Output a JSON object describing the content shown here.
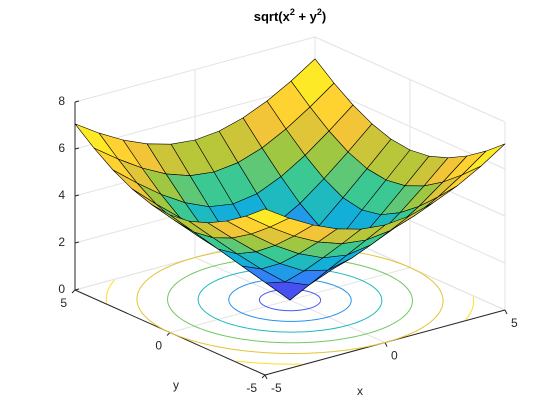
{
  "chart_data": {
    "type": "surface",
    "title": "sqrt(x^2 + y^2)",
    "x_label": "x",
    "y_label": "y",
    "x": [
      -5,
      -4,
      -3,
      -2,
      -1,
      0,
      1,
      2,
      3,
      4,
      5
    ],
    "y": [
      -5,
      -4,
      -3,
      -2,
      -1,
      0,
      1,
      2,
      3,
      4,
      5
    ],
    "z": [
      [
        7.07,
        6.4,
        5.83,
        5.39,
        5.1,
        5,
        5.1,
        5.39,
        5.83,
        6.4,
        7.07
      ],
      [
        6.4,
        5.66,
        5,
        4.47,
        4.12,
        4,
        4.12,
        4.47,
        5,
        5.66,
        6.4
      ],
      [
        5.83,
        5,
        4.24,
        3.61,
        3.16,
        3,
        3.16,
        3.61,
        4.24,
        5,
        5.83
      ],
      [
        5.39,
        4.47,
        3.61,
        2.83,
        2.24,
        2,
        2.24,
        2.83,
        3.61,
        4.47,
        5.39
      ],
      [
        5.1,
        4.12,
        3.16,
        2.24,
        1.41,
        1,
        1.41,
        2.24,
        3.16,
        4.12,
        5.1
      ],
      [
        5,
        4,
        3,
        2,
        1,
        0,
        1,
        2,
        3,
        4,
        5
      ],
      [
        5.1,
        4.12,
        3.16,
        2.24,
        1.41,
        1,
        1.41,
        2.24,
        3.16,
        4.12,
        5.1
      ],
      [
        5.39,
        4.47,
        3.61,
        2.83,
        2.24,
        2,
        2.24,
        2.83,
        3.61,
        4.47,
        5.39
      ],
      [
        5.83,
        5,
        4.24,
        3.61,
        3.16,
        3,
        3.16,
        3.61,
        4.24,
        5,
        5.83
      ],
      [
        6.4,
        5.66,
        5,
        4.47,
        4.12,
        4,
        4.12,
        4.47,
        5,
        5.66,
        6.4
      ],
      [
        7.07,
        6.4,
        5.83,
        5.39,
        5.1,
        5,
        5.1,
        5.39,
        5.83,
        6.4,
        7.07
      ]
    ],
    "contour_levels": [
      1,
      2,
      3,
      4,
      5,
      6,
      7
    ],
    "xlim": [
      -5,
      5
    ],
    "ylim": [
      -5,
      5
    ],
    "zlim": [
      0,
      8
    ],
    "xticks": [
      -5,
      0,
      5
    ],
    "yticks": [
      -5,
      0,
      5
    ],
    "zticks": [
      0,
      2,
      4,
      6,
      8
    ],
    "grid": true
  }
}
